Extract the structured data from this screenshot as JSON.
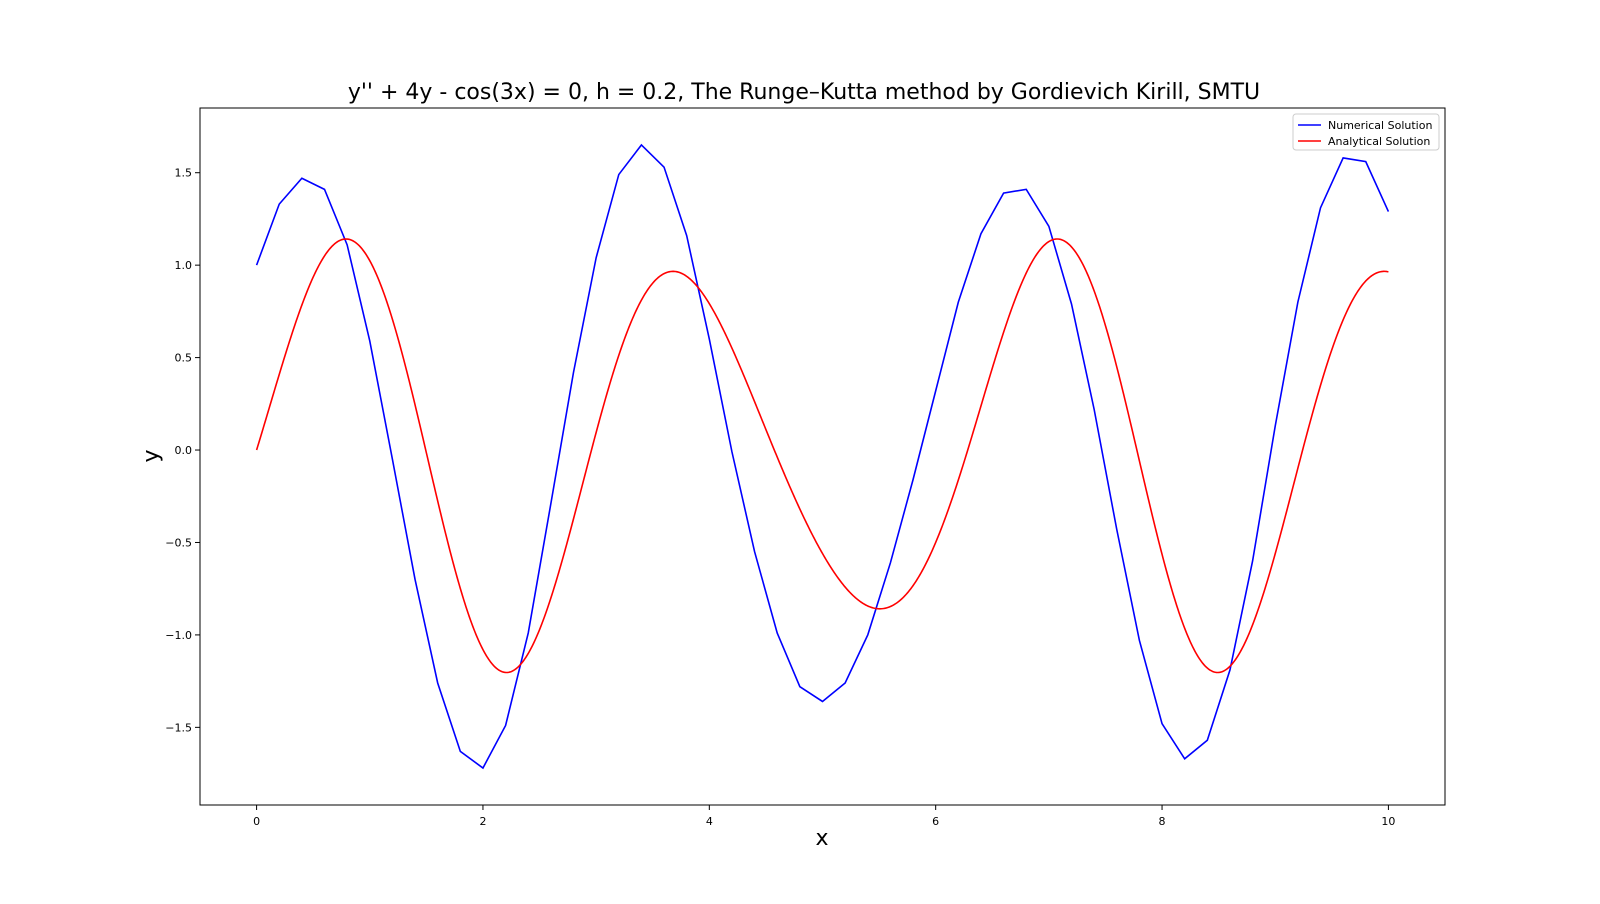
{
  "chart_data": {
    "type": "line",
    "title": "y'' + 4y - cos(3x) = 0, h = 0.2, The Runge–Kutta method by Gordievich Kirill, SMTU",
    "xlabel": "x",
    "ylabel": "y",
    "xlim": [
      -0.5,
      10.5
    ],
    "ylim": [
      -1.92,
      1.85
    ],
    "x_ticks": [
      0,
      2,
      4,
      6,
      8,
      10
    ],
    "x_tick_labels": [
      "0",
      "2",
      "4",
      "6",
      "8",
      "10"
    ],
    "y_ticks": [
      -1.5,
      -1.0,
      -0.5,
      0.0,
      0.5,
      1.0,
      1.5
    ],
    "y_tick_labels": [
      "−1.5",
      "−1.0",
      "−0.5",
      "0.0",
      "0.5",
      "1.0",
      "1.5"
    ],
    "grid": false,
    "legend_position": "top-right",
    "series": [
      {
        "name": "Numerical Solution",
        "color": "#0000ff",
        "x": [
          0,
          0.2,
          0.4,
          0.6,
          0.8,
          1.0,
          1.2,
          1.4,
          1.6,
          1.8,
          2.0,
          2.2,
          2.4,
          2.6,
          2.8,
          3.0,
          3.2,
          3.4,
          3.6,
          3.8,
          4.0,
          4.2,
          4.4,
          4.6,
          4.8,
          5.0,
          5.2,
          5.4,
          5.6,
          5.8,
          6.0,
          6.2,
          6.4,
          6.6,
          6.8,
          7.0,
          7.2,
          7.4,
          7.6,
          7.8,
          8.0,
          8.2,
          8.4,
          8.6,
          8.8,
          9.0,
          9.2,
          9.4,
          9.6,
          9.8,
          10.0
        ],
        "y": [
          1.0,
          1.33,
          1.47,
          1.41,
          1.11,
          0.59,
          -0.05,
          -0.7,
          -1.26,
          -1.63,
          -1.72,
          -1.49,
          -0.99,
          -0.29,
          0.42,
          1.04,
          1.49,
          1.65,
          1.53,
          1.16,
          0.6,
          -0.01,
          -0.55,
          -0.99,
          -1.28,
          -1.36,
          -1.26,
          -1.0,
          -0.61,
          -0.16,
          0.32,
          0.8,
          1.17,
          1.39,
          1.41,
          1.21,
          0.79,
          0.22,
          -0.43,
          -1.03,
          -1.48,
          -1.67,
          -1.57,
          -1.19,
          -0.6,
          0.13,
          0.8,
          1.31,
          1.58,
          1.56,
          1.29
        ]
      },
      {
        "name": "Analytical Solution",
        "color": "#ff0000",
        "formula": "0.2*cos(2x) - 0.2*cos(3x) + sin(2x)"
      }
    ]
  }
}
